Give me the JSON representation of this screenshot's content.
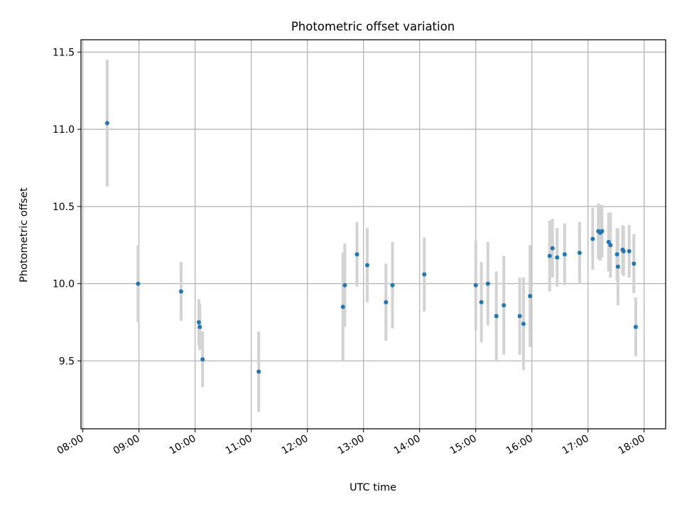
{
  "chart_data": {
    "type": "scatter",
    "title": "Photometric offset variation",
    "xlabel": "UTC time",
    "ylabel": "Photometric offset",
    "x_ticks": [
      "08:00",
      "09:00",
      "10:00",
      "11:00",
      "12:00",
      "13:00",
      "14:00",
      "15:00",
      "16:00",
      "17:00",
      "18:00"
    ],
    "y_ticks": [
      "9.5",
      "10.0",
      "10.5",
      "11.0",
      "11.5"
    ],
    "xlim": [
      "07:58",
      "18:23"
    ],
    "ylim": [
      9.06,
      11.58
    ],
    "grid": true,
    "colors": {
      "point": "#1f77b4",
      "errorbar": "#d3d3d3",
      "grid": "#b0b0b0"
    },
    "series": [
      {
        "points": [
          {
            "x": "08:26",
            "y": 11.04,
            "err": 0.41
          },
          {
            "x": "08:59",
            "y": 10.0,
            "err": 0.25
          },
          {
            "x": "09:45",
            "y": 9.95,
            "err": 0.19
          },
          {
            "x": "10:04",
            "y": 9.75,
            "err": 0.15
          },
          {
            "x": "10:05",
            "y": 9.72,
            "err": 0.15
          },
          {
            "x": "10:08",
            "y": 9.51,
            "err": 0.18
          },
          {
            "x": "11:08",
            "y": 9.43,
            "err": 0.26
          },
          {
            "x": "12:38",
            "y": 9.85,
            "err": 0.35
          },
          {
            "x": "12:40",
            "y": 9.99,
            "err": 0.27
          },
          {
            "x": "12:53",
            "y": 10.19,
            "err": 0.21
          },
          {
            "x": "13:04",
            "y": 10.12,
            "err": 0.24
          },
          {
            "x": "13:24",
            "y": 9.88,
            "err": 0.25
          },
          {
            "x": "13:31",
            "y": 9.99,
            "err": 0.28
          },
          {
            "x": "14:05",
            "y": 10.06,
            "err": 0.24
          },
          {
            "x": "15:00",
            "y": 9.99,
            "err": 0.29
          },
          {
            "x": "15:06",
            "y": 9.88,
            "err": 0.26
          },
          {
            "x": "15:13",
            "y": 10.0,
            "err": 0.27
          },
          {
            "x": "15:22",
            "y": 9.79,
            "err": 0.29
          },
          {
            "x": "15:30",
            "y": 9.86,
            "err": 0.32
          },
          {
            "x": "15:47",
            "y": 9.79,
            "err": 0.25
          },
          {
            "x": "15:51",
            "y": 9.74,
            "err": 0.3
          },
          {
            "x": "15:58",
            "y": 9.92,
            "err": 0.33
          },
          {
            "x": "16:19",
            "y": 10.18,
            "err": 0.23
          },
          {
            "x": "16:22",
            "y": 10.23,
            "err": 0.19
          },
          {
            "x": "16:27",
            "y": 10.17,
            "err": 0.19
          },
          {
            "x": "16:35",
            "y": 10.19,
            "err": 0.2
          },
          {
            "x": "16:51",
            "y": 10.2,
            "err": 0.2
          },
          {
            "x": "17:05",
            "y": 10.29,
            "err": 0.2
          },
          {
            "x": "17:11",
            "y": 10.34,
            "err": 0.18
          },
          {
            "x": "17:13",
            "y": 10.33,
            "err": 0.18
          },
          {
            "x": "17:15",
            "y": 10.34,
            "err": 0.17
          },
          {
            "x": "17:22",
            "y": 10.27,
            "err": 0.19
          },
          {
            "x": "17:24",
            "y": 10.25,
            "err": 0.21
          },
          {
            "x": "17:31",
            "y": 10.19,
            "err": 0.17
          },
          {
            "x": "17:32",
            "y": 10.11,
            "err": 0.25
          },
          {
            "x": "17:37",
            "y": 10.22,
            "err": 0.16
          },
          {
            "x": "17:38",
            "y": 10.21,
            "err": 0.16
          },
          {
            "x": "17:44",
            "y": 10.21,
            "err": 0.17
          },
          {
            "x": "17:49",
            "y": 10.13,
            "err": 0.19
          },
          {
            "x": "17:51",
            "y": 9.72,
            "err": 0.19
          }
        ]
      }
    ]
  }
}
